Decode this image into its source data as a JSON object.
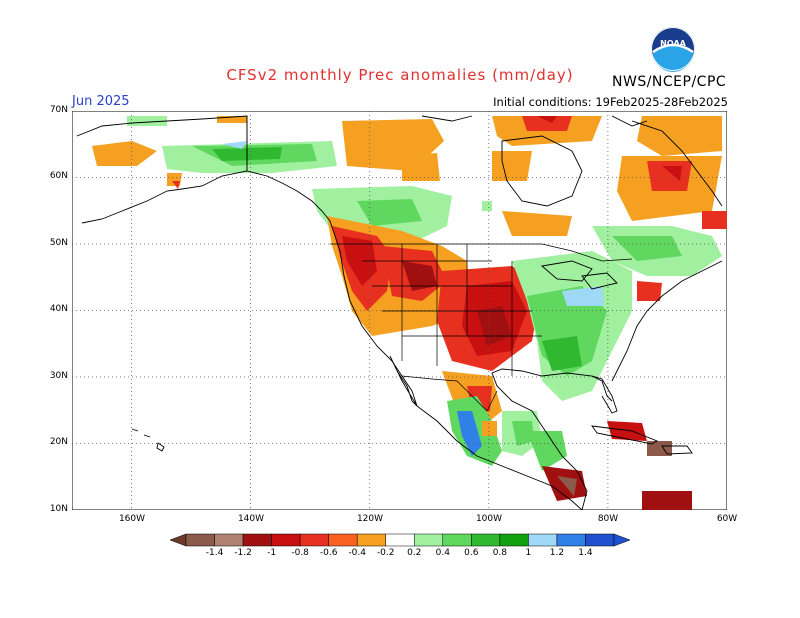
{
  "header": {
    "title": "CFSv2 monthly Prec anomalies (mm/day)",
    "month": "Jun 2025",
    "initial_conditions": "Initial conditions: 19Feb2025-28Feb2025",
    "agency": "NWS/NCEP/CPC",
    "logo_text": "NOAA"
  },
  "axes": {
    "lat_labels": [
      "70N",
      "60N",
      "50N",
      "40N",
      "30N",
      "20N",
      "10N"
    ],
    "lon_labels": [
      "160W",
      "140W",
      "120W",
      "100W",
      "80W",
      "60W"
    ],
    "lat_range": [
      10,
      70
    ],
    "lon_range": [
      -170,
      -60
    ]
  },
  "colorbar": {
    "labels": [
      "-1.4",
      "-1.2",
      "-1",
      "-0.8",
      "-0.6",
      "-0.4",
      "-0.2",
      "0.2",
      "0.4",
      "0.6",
      "0.8",
      "1",
      "1.2",
      "1.4"
    ],
    "colors": [
      "#8b5a4a",
      "#b08070",
      "#a01010",
      "#c81010",
      "#e83020",
      "#fa6020",
      "#f5a020",
      "#ffffff",
      "#a0f0a0",
      "#60d860",
      "#30b830",
      "#10a010",
      "#a0d8f8",
      "#3080e8",
      "#2050d0"
    ]
  }
}
